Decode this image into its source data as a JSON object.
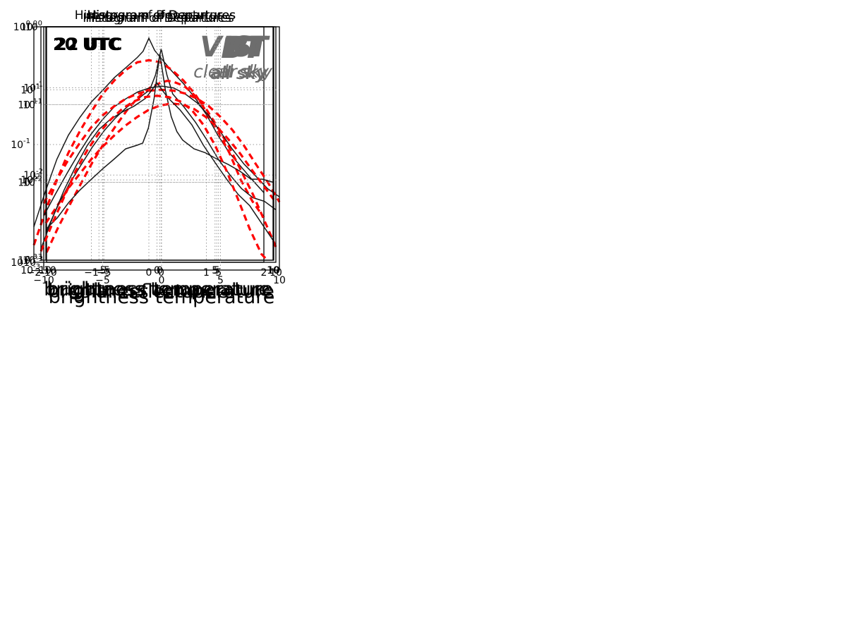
{
  "chart_data": [
    {
      "type": "line",
      "title": "Histogram of Departures",
      "xlabel": "solar reflectance",
      "ylabel": "",
      "annotation": "VIS",
      "subannotation": "",
      "time_label": "",
      "xlim": [
        -2,
        2
      ],
      "ylim": [
        0.01,
        1
      ],
      "yscale": "log",
      "grid": true,
      "xticks": [
        -2,
        -1,
        0,
        1,
        2
      ],
      "xtick_labels": [
        "−2",
        "−1",
        "0",
        "1",
        "2"
      ],
      "yticks": [
        0.01,
        0.1,
        1
      ],
      "ytick_labels": [
        {
          "base": "10",
          "exp": "-2"
        },
        {
          "base": "10",
          "exp": "-1"
        },
        {
          "base": "10",
          "exp": "0"
        }
      ],
      "series": [
        {
          "style": "black-solid",
          "x": [
            -2.0,
            -1.8,
            -1.6,
            -1.4,
            -1.2,
            -1.0,
            -0.8,
            -0.6,
            -0.4,
            -0.2,
            -0.1,
            0.0,
            0.1,
            0.2,
            0.4,
            0.6,
            0.8,
            1.0,
            1.2,
            1.4,
            1.6,
            1.8,
            2.0
          ],
          "y": [
            0.02,
            0.04,
            0.075,
            0.12,
            0.17,
            0.23,
            0.29,
            0.37,
            0.45,
            0.55,
            0.62,
            0.8,
            0.63,
            0.55,
            0.42,
            0.33,
            0.25,
            0.18,
            0.12,
            0.085,
            0.065,
            0.05,
            0.039
          ]
        },
        {
          "style": "red-dashed",
          "x": [
            -2.0,
            -1.8,
            -1.6,
            -1.4,
            -1.2,
            -1.0,
            -0.8,
            -0.6,
            -0.4,
            -0.2,
            0.0,
            0.2,
            0.4,
            0.6,
            0.8,
            1.0,
            1.2,
            1.4,
            1.6,
            1.8,
            2.0
          ],
          "y": [
            0.014,
            0.027,
            0.05,
            0.085,
            0.13,
            0.19,
            0.27,
            0.35,
            0.43,
            0.5,
            0.52,
            0.5,
            0.43,
            0.35,
            0.27,
            0.19,
            0.13,
            0.085,
            0.05,
            0.033,
            0.024
          ]
        }
      ]
    },
    {
      "type": "line",
      "title": "Histogram of Departures",
      "xlabel": "brightness temperature",
      "ylabel": "",
      "annotation": "BT",
      "subannotation": "all sky",
      "time_label": "",
      "xlim": [
        -10,
        10
      ],
      "ylim": [
        0.001,
        0.5
      ],
      "yscale": "log",
      "grid": true,
      "xticks": [
        -10,
        -5,
        0,
        5,
        10
      ],
      "xtick_labels": [
        "−10",
        "−5",
        "0",
        "5",
        "10"
      ],
      "yticks": [
        0.001,
        0.01,
        0.1
      ],
      "ytick_labels": [
        {
          "base": "10",
          "exp": "-3"
        },
        {
          "base": "10",
          "exp": "-2"
        },
        {
          "base": "10",
          "exp": "-1"
        }
      ],
      "series": [
        {
          "style": "black-solid",
          "x": [
            -10,
            -9,
            -8,
            -7,
            -6,
            -5,
            -4,
            -3,
            -2,
            -1,
            -0.5,
            0,
            0.5,
            1,
            2,
            3,
            4,
            5,
            6,
            7,
            8,
            9,
            10
          ],
          "y": [
            0.0023,
            0.0045,
            0.008,
            0.013,
            0.021,
            0.032,
            0.045,
            0.06,
            0.075,
            0.095,
            0.14,
            0.28,
            0.14,
            0.085,
            0.06,
            0.04,
            0.025,
            0.015,
            0.01,
            0.007,
            0.0055,
            0.005,
            0.004
          ]
        },
        {
          "style": "red-dashed",
          "x": [
            -10,
            -9,
            -8,
            -7,
            -6,
            -5,
            -4,
            -3,
            -2,
            -1,
            0,
            0.5,
            1,
            2,
            3,
            4,
            5,
            6,
            7,
            8,
            9,
            10
          ],
          "y": [
            0.0013,
            0.0025,
            0.0045,
            0.008,
            0.014,
            0.023,
            0.036,
            0.055,
            0.078,
            0.1,
            0.115,
            0.12,
            0.118,
            0.105,
            0.08,
            0.055,
            0.034,
            0.02,
            0.011,
            0.006,
            0.003,
            0.0015
          ]
        }
      ]
    },
    {
      "type": "line",
      "title": "Histogram of Departures",
      "xlabel": "brightness temperature",
      "ylabel": "",
      "annotation": "BT",
      "subannotation": "clear sky",
      "time_label": "",
      "xlim": [
        -10,
        10
      ],
      "ylim": [
        0.001,
        0.5
      ],
      "yscale": "log",
      "grid": true,
      "xticks": [
        -10,
        -5,
        0,
        5,
        10
      ],
      "xtick_labels": [
        "−10",
        "−5",
        "0",
        "5",
        "10"
      ],
      "yticks": [
        0.001,
        0.01,
        0.1
      ],
      "ytick_labels": [
        {
          "base": "10",
          "exp": "-3"
        },
        {
          "base": "10",
          "exp": "-2"
        },
        {
          "base": "10",
          "exp": "-1"
        }
      ],
      "series": [
        {
          "style": "black-solid",
          "x": [
            -10,
            -9,
            -8,
            -7,
            -6,
            -5,
            -4,
            -3,
            -2,
            -1,
            0,
            1,
            2,
            3,
            4,
            5,
            6,
            7,
            8,
            9,
            10
          ],
          "y": [
            0.004,
            0.007,
            0.012,
            0.02,
            0.032,
            0.047,
            0.065,
            0.08,
            0.095,
            0.105,
            0.11,
            0.105,
            0.09,
            0.072,
            0.052,
            0.034,
            0.022,
            0.015,
            0.011,
            0.008,
            0.0065
          ]
        },
        {
          "style": "red-dashed",
          "x": [
            -10,
            -9,
            -8,
            -7,
            -6,
            -5,
            -4,
            -3,
            -2,
            -1,
            0,
            1,
            2,
            3,
            4,
            5,
            6,
            7,
            8,
            9,
            10
          ],
          "y": [
            0.0055,
            0.0095,
            0.016,
            0.025,
            0.038,
            0.052,
            0.066,
            0.08,
            0.091,
            0.098,
            0.1,
            0.098,
            0.091,
            0.08,
            0.066,
            0.05,
            0.036,
            0.024,
            0.015,
            0.0095,
            0.0057
          ]
        }
      ]
    },
    {
      "type": "line",
      "title": "Histogram of Departures",
      "xlabel": "brightness temperature",
      "ylabel": "",
      "annotation": "BT",
      "subannotation": "all sky",
      "time_label": "20 UTC",
      "xlim": [
        -10,
        10
      ],
      "ylim": [
        0.001,
        1
      ],
      "yscale": "log",
      "grid": true,
      "xticks": [
        -10,
        -5,
        0,
        5,
        10
      ],
      "xtick_labels": [
        "−10",
        "−5",
        "0",
        "5",
        "10"
      ],
      "yticks": [
        0.001,
        0.01,
        0.1,
        1
      ],
      "ytick_labels": [
        {
          "base": "10",
          "exp": "-3"
        },
        {
          "base": "10",
          "exp": "-2"
        },
        {
          "base": "10",
          "exp": "-1"
        },
        {
          "base": "10",
          "exp": "0"
        }
      ],
      "series": [
        {
          "style": "black-solid",
          "x": [
            -10,
            -9,
            -8,
            -7,
            -6,
            -5,
            -4,
            -3,
            -2,
            -1.5,
            -1,
            -0.5,
            0,
            0.5,
            1,
            1.5,
            2,
            3,
            4,
            5,
            6,
            7,
            8,
            9,
            10
          ],
          "y": [
            0.0025,
            0.0035,
            0.0055,
            0.008,
            0.011,
            0.015,
            0.02,
            0.027,
            0.03,
            0.032,
            0.05,
            0.12,
            0.45,
            0.15,
            0.07,
            0.045,
            0.035,
            0.027,
            0.024,
            0.02,
            0.017,
            0.014,
            0.011,
            0.011,
            0.01
          ]
        },
        {
          "style": "red-dashed",
          "x": [
            -10,
            -9,
            -8,
            -7,
            -6,
            -5,
            -4,
            -3,
            -2,
            -1,
            0,
            1,
            2,
            3,
            4,
            5,
            6,
            7,
            8,
            9,
            10
          ],
          "y": [
            0.003,
            0.005,
            0.0085,
            0.013,
            0.02,
            0.029,
            0.04,
            0.054,
            0.069,
            0.085,
            0.097,
            0.103,
            0.1,
            0.088,
            0.07,
            0.052,
            0.036,
            0.024,
            0.015,
            0.0095,
            0.006
          ]
        }
      ]
    },
    {
      "type": "line",
      "title": "Histogram of Departures",
      "xlabel": "brightness temperature",
      "ylabel": "",
      "annotation": "BT",
      "subannotation": "all sky",
      "time_label": "22 UTC",
      "xlim": [
        -10,
        10
      ],
      "ylim": [
        0.001,
        1
      ],
      "yscale": "log",
      "grid": true,
      "xticks": [
        -10,
        -5,
        0,
        5,
        10
      ],
      "xtick_labels": [
        "−10",
        "−5",
        "0",
        "5",
        "10"
      ],
      "yticks": [
        0.001,
        0.01,
        0.1,
        1
      ],
      "ytick_labels": [
        {
          "base": "10",
          "exp": "-3"
        },
        {
          "base": "10",
          "exp": "-2"
        },
        {
          "base": "10",
          "exp": "-1"
        },
        {
          "base": "10",
          "exp": "0"
        }
      ],
      "series": [
        {
          "style": "black-solid",
          "x": [
            -10,
            -9,
            -8,
            -7,
            -6,
            -5,
            -4,
            -3,
            -2,
            -1,
            -0.5,
            0,
            0.5,
            1,
            2,
            3,
            4,
            5,
            6,
            7,
            8,
            9,
            10
          ],
          "y": [
            0.0014,
            0.0035,
            0.008,
            0.016,
            0.03,
            0.048,
            0.065,
            0.08,
            0.095,
            0.12,
            0.15,
            0.19,
            0.15,
            0.12,
            0.085,
            0.055,
            0.03,
            0.018,
            0.011,
            0.007,
            0.005,
            0.003,
            0.0018
          ]
        },
        {
          "style": "red-dashed",
          "x": [
            -10,
            -9,
            -8,
            -7,
            -6,
            -5,
            -4,
            -3,
            -2,
            -1,
            0,
            1,
            2,
            3,
            4,
            5,
            6,
            7,
            8,
            9,
            9.5
          ],
          "y": [
            0.0013,
            0.003,
            0.0065,
            0.014,
            0.026,
            0.043,
            0.064,
            0.088,
            0.11,
            0.125,
            0.13,
            0.125,
            0.11,
            0.085,
            0.055,
            0.03,
            0.014,
            0.006,
            0.0025,
            0.0012,
            0.001
          ]
        }
      ]
    }
  ]
}
